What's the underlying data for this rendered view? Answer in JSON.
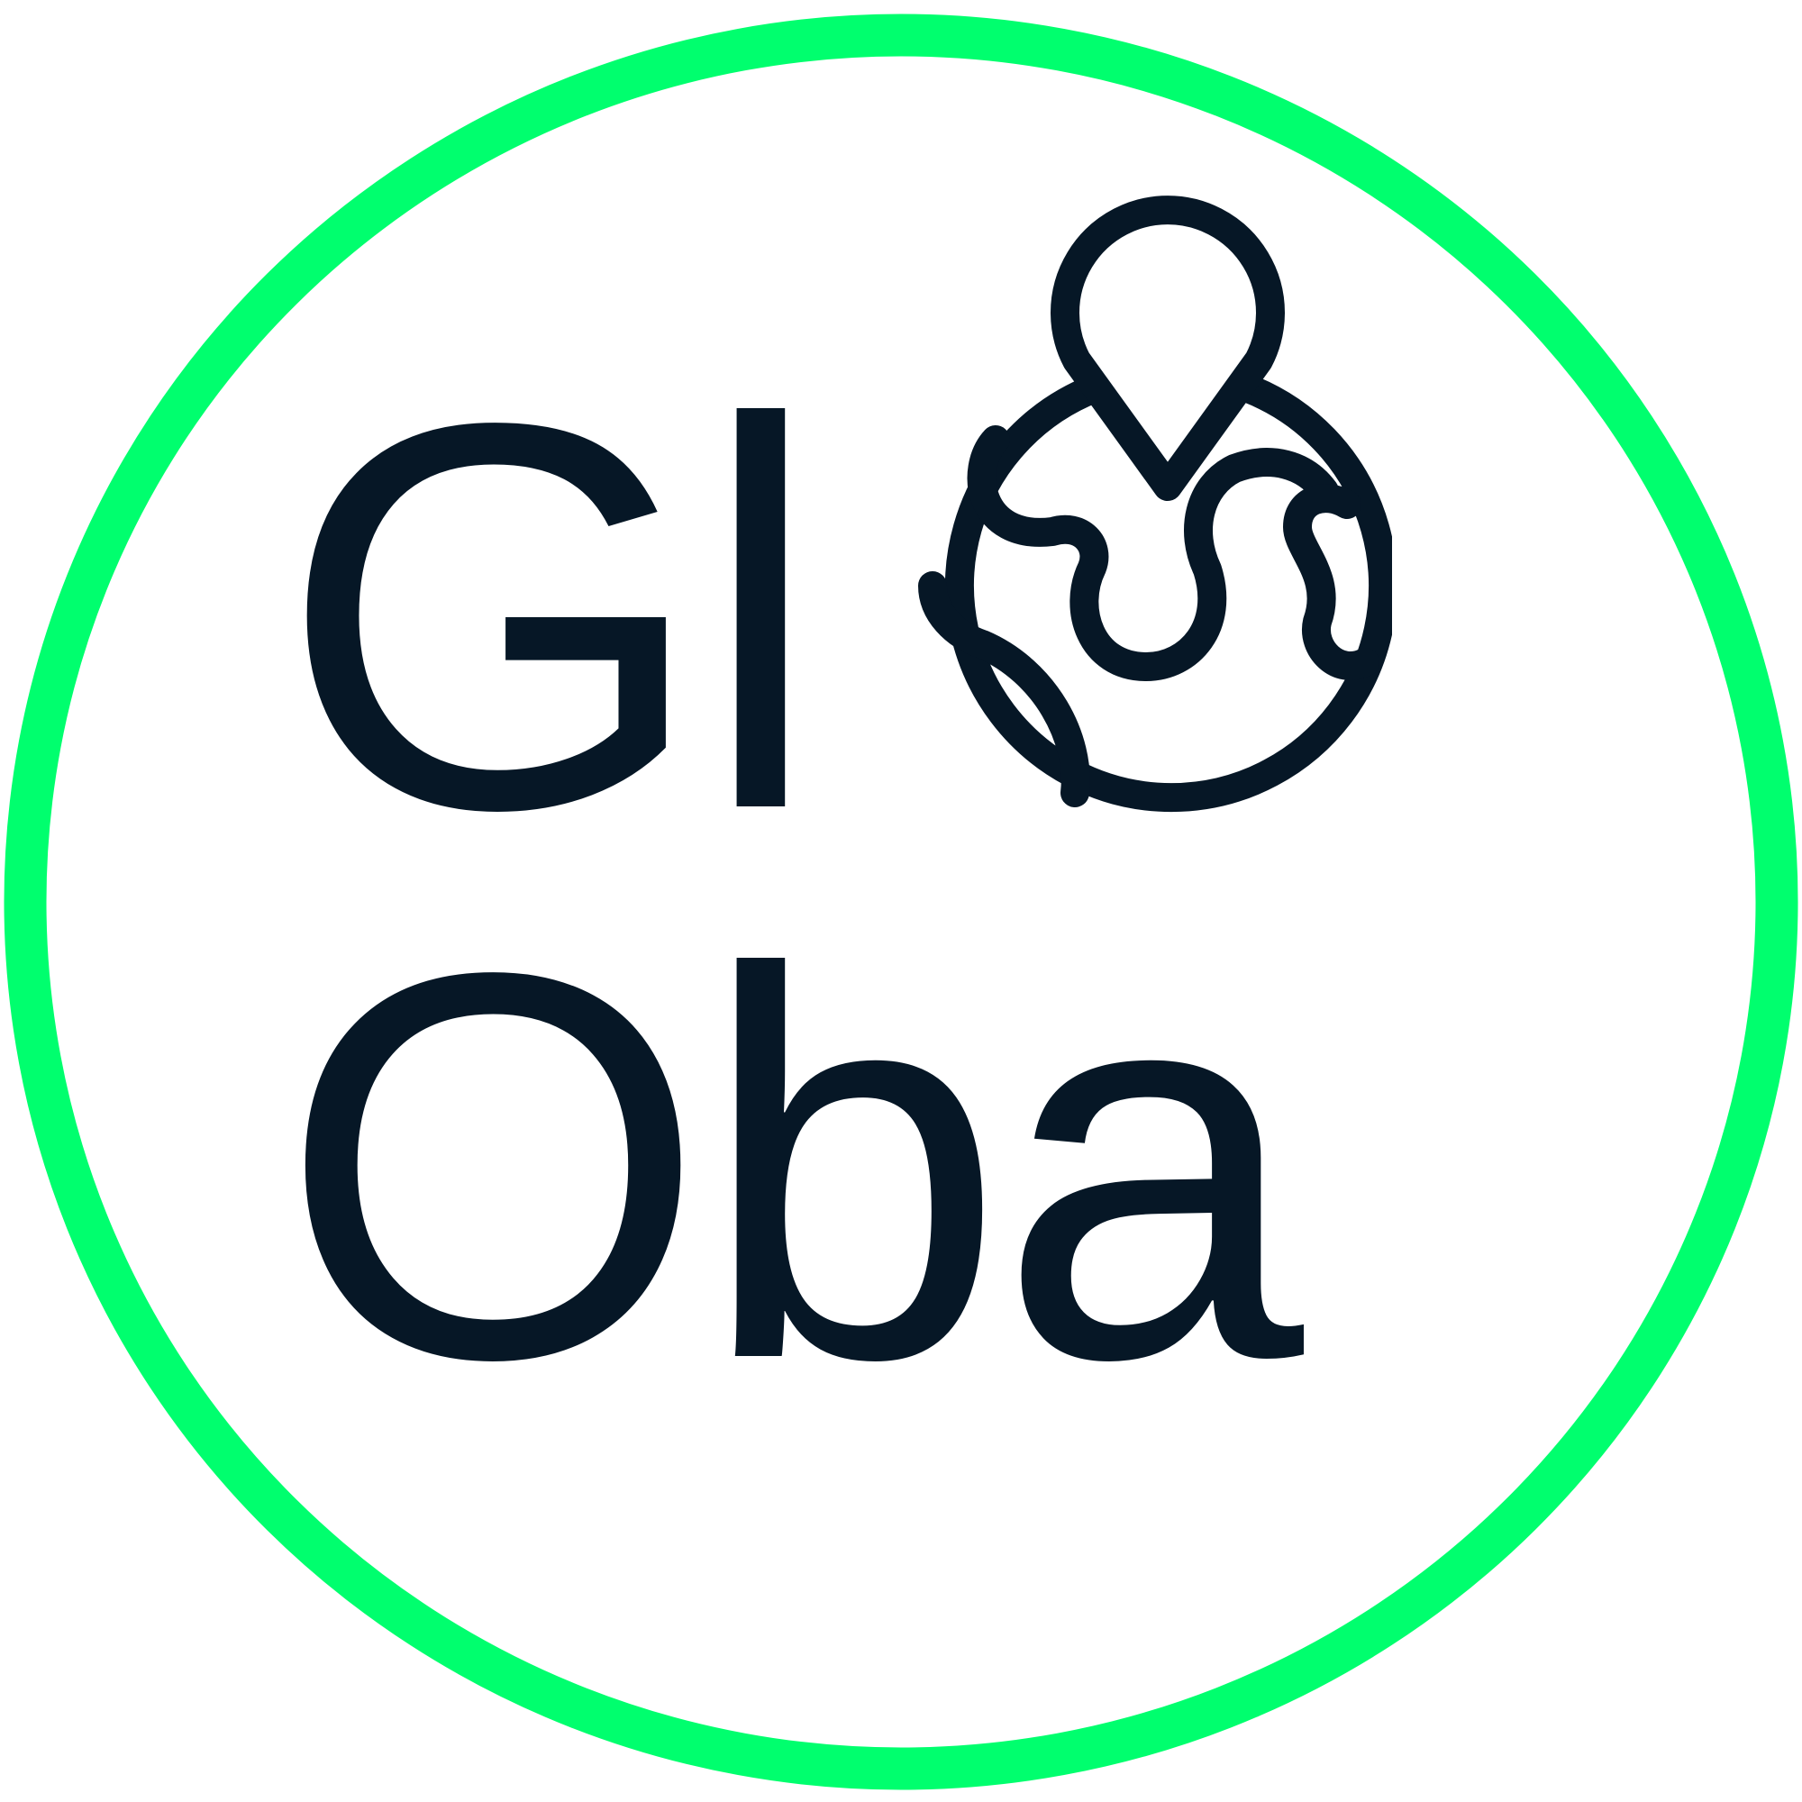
{
  "logo": {
    "line1": "Gl",
    "line2": "Oba",
    "icon": "globe-with-location-pin-icon"
  },
  "colors": {
    "ring": "#00ff6e",
    "ink": "#061726",
    "background": "#ffffff"
  }
}
